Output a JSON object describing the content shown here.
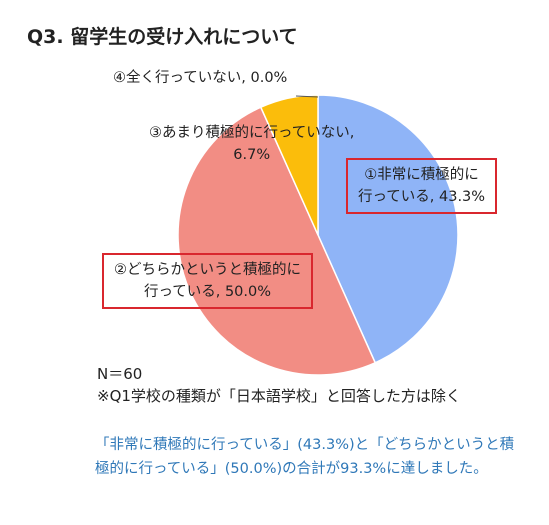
{
  "title": "Q3. 留学生の受け入れについて",
  "chart_data": {
    "type": "pie",
    "slices": [
      {
        "label_line1": "①非常に積極的に",
        "label_line2": "行っている, 43.3%",
        "value": 43.3,
        "color": "#8fb4f7"
      },
      {
        "label_line1": "②どちらかというと積極的に",
        "label_line2": "行っている, 50.0%",
        "value": 50.0,
        "color": "#f28d84"
      },
      {
        "label_line1": "③あまり積極的に行っていない,",
        "label_line2": "6.7%",
        "value": 6.7,
        "color": "#fbbd0b"
      },
      {
        "label_line1": "④全く行っていない, 0.0%",
        "label_line2": "",
        "value": 0.0,
        "color": "#7f7f7f"
      }
    ],
    "highlight_color": "#d9272e"
  },
  "notes": {
    "n": "N＝60",
    "exclusion": "※Q1学校の種類が「日本語学校」と回答した方は除く"
  },
  "summary": "「非常に積極的に行っている」(43.3%)と「どちらかというと積極的に行っている」(50.0%)の合計が93.3%に達しました。"
}
